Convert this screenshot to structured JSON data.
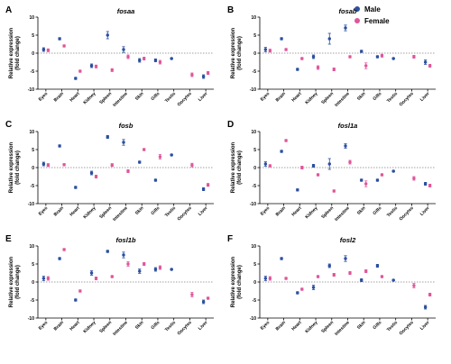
{
  "legend": {
    "male_label": "Male",
    "female_label": "Female",
    "male_color": "#2a4fa0",
    "female_color": "#e0559a"
  },
  "chart_data": [
    {
      "type": "scatter",
      "panel": "A",
      "title": "fosaa",
      "ylabel_line1": "Relative expression",
      "ylabel_line2": "(fold change)",
      "ylim": [
        -10,
        10
      ],
      "yticks": [
        -10,
        -5,
        0,
        5,
        10
      ],
      "categories": [
        "Eyes",
        "Brain",
        "Heart",
        "Kidney",
        "Spleen",
        "Intestine",
        "Skin",
        "Gills",
        "Testis",
        "Oocytes",
        "Liver"
      ],
      "series": [
        {
          "name": "Male",
          "values": [
            1,
            4,
            -7,
            -3.5,
            5,
            1,
            -2,
            -2,
            -1.5,
            null,
            -6.5
          ],
          "errors": [
            0.5,
            0.3,
            0.3,
            0.5,
            1,
            0.8,
            0.5,
            0.4,
            0.2,
            null,
            0.5
          ]
        },
        {
          "name": "Female",
          "values": [
            0.8,
            2,
            -5,
            -3.7,
            -4.7,
            -1,
            -1.5,
            -2.5,
            null,
            -6,
            -5.5
          ],
          "errors": [
            0.4,
            0.3,
            0.3,
            0.4,
            0.4,
            0.5,
            0.4,
            0.5,
            null,
            0.5,
            0.4
          ]
        }
      ]
    },
    {
      "type": "scatter",
      "panel": "B",
      "title": "fosab",
      "ylabel_line1": "Relative expression",
      "ylabel_line2": "(fold change)",
      "ylim": [
        -10,
        10
      ],
      "yticks": [
        -10,
        -5,
        0,
        5,
        10
      ],
      "categories": [
        "Eyes",
        "Brain",
        "Heart",
        "Kidney",
        "Spleen",
        "Intestine",
        "Skin",
        "Gills",
        "Testis",
        "Oocytes",
        "Liver"
      ],
      "series": [
        {
          "name": "Male",
          "values": [
            1,
            4,
            -4.5,
            -1,
            4,
            7,
            0.5,
            -1,
            -1.5,
            null,
            -2.5
          ],
          "errors": [
            0.6,
            0.3,
            0.3,
            0.5,
            1.5,
            0.8,
            0.3,
            0.3,
            0.2,
            null,
            0.6
          ]
        },
        {
          "name": "Female",
          "values": [
            0.7,
            1,
            -1.5,
            -4,
            -4.5,
            -1,
            -3.5,
            -0.7,
            null,
            -1,
            -3.5
          ],
          "errors": [
            0.4,
            0.3,
            0.3,
            0.5,
            0.4,
            0.3,
            0.8,
            0.4,
            null,
            0.4,
            0.4
          ]
        }
      ]
    },
    {
      "type": "scatter",
      "panel": "C",
      "title": "fosb",
      "ylabel_line1": "Relative expression",
      "ylabel_line2": "(fold change)",
      "ylim": [
        -10,
        10
      ],
      "yticks": [
        -10,
        -5,
        0,
        5,
        10
      ],
      "categories": [
        "Eyes",
        "Brain",
        "Heart",
        "Kidney",
        "Spleen",
        "Intestine",
        "Skin",
        "Gills",
        "Testis",
        "Oocytes",
        "Liver"
      ],
      "series": [
        {
          "name": "Male",
          "values": [
            1,
            6,
            -5.5,
            -1.5,
            8.5,
            7,
            1.5,
            -3.5,
            3.5,
            null,
            -6
          ],
          "errors": [
            0.5,
            0.3,
            0.3,
            0.5,
            0.4,
            0.8,
            0.3,
            0.3,
            0.2,
            null,
            0.4
          ]
        },
        {
          "name": "Female",
          "values": [
            0.7,
            0.8,
            null,
            -2.5,
            0.7,
            -1,
            5,
            3,
            null,
            0.7,
            -4.8
          ],
          "errors": [
            0.4,
            0.3,
            null,
            0.4,
            0.4,
            0.4,
            0.3,
            0.6,
            null,
            0.5,
            0.4
          ]
        }
      ]
    },
    {
      "type": "scatter",
      "panel": "D",
      "title": "fosl1a",
      "ylabel_line1": "Relative expression",
      "ylabel_line2": "(fold change)",
      "ylim": [
        -10,
        10
      ],
      "yticks": [
        -10,
        -5,
        0,
        5,
        10
      ],
      "categories": [
        "Eyes",
        "Brain",
        "Heart",
        "Kidney",
        "Spleen",
        "Intestine",
        "Skin",
        "Gills",
        "Testis",
        "Oocytes",
        "Liver"
      ],
      "series": [
        {
          "name": "Male",
          "values": [
            1,
            4.5,
            -6.2,
            0.5,
            1,
            6,
            -3.5,
            -3.5,
            -1,
            null,
            -4.5
          ],
          "errors": [
            0.6,
            0.3,
            0.3,
            0.4,
            1.5,
            0.6,
            0.3,
            0.3,
            0.2,
            null,
            0.4
          ]
        },
        {
          "name": "Female",
          "values": [
            0.5,
            7.5,
            0,
            -2,
            -6.5,
            1.5,
            -4.5,
            -2,
            null,
            -3,
            -5
          ],
          "errors": [
            0.3,
            0.3,
            0.4,
            0.3,
            0.3,
            0.5,
            0.8,
            0.3,
            null,
            0.5,
            0.4
          ]
        }
      ]
    },
    {
      "type": "scatter",
      "panel": "E",
      "title": "fosl1b",
      "ylabel_line1": "Relative expression",
      "ylabel_line2": "(fold change)",
      "ylim": [
        -10,
        10
      ],
      "yticks": [
        -10,
        -5,
        0,
        5,
        10
      ],
      "categories": [
        "Eyes",
        "Brain",
        "Heart",
        "Kidney",
        "Spleen",
        "Intestine",
        "Skin",
        "Gills",
        "Testis",
        "Oocytes",
        "Liver"
      ],
      "series": [
        {
          "name": "Male",
          "values": [
            1,
            6.5,
            -5,
            2.5,
            8.5,
            7.5,
            3,
            3.5,
            3.5,
            null,
            -5.5
          ],
          "errors": [
            0.6,
            0.3,
            0.3,
            0.6,
            0.3,
            0.8,
            0.6,
            0.5,
            0.2,
            null,
            0.5
          ]
        },
        {
          "name": "Female",
          "values": [
            1,
            9,
            -2.5,
            1,
            1.5,
            5,
            5,
            4,
            null,
            -3.5,
            -4.5
          ],
          "errors": [
            0.5,
            0.3,
            0.3,
            0.4,
            0.3,
            0.6,
            0.4,
            0.5,
            null,
            0.6,
            0.3
          ]
        }
      ]
    },
    {
      "type": "scatter",
      "panel": "F",
      "title": "fosl2",
      "ylabel_line1": "Relative expression",
      "ylabel_line2": "(fold change)",
      "ylim": [
        -10,
        10
      ],
      "yticks": [
        -10,
        -5,
        0,
        5,
        10
      ],
      "categories": [
        "Eyes",
        "Brain",
        "Heart",
        "Kidney",
        "Spleen",
        "Intestine",
        "Skin",
        "Gills",
        "Testis",
        "Oocytes",
        "Liver"
      ],
      "series": [
        {
          "name": "Male",
          "values": [
            1,
            6.5,
            -3,
            -1.5,
            4.5,
            6.5,
            0.5,
            4.5,
            0.5,
            null,
            -7
          ],
          "errors": [
            0.6,
            0.3,
            0.3,
            0.6,
            0.5,
            0.8,
            0.4,
            0.4,
            0.2,
            null,
            0.5
          ]
        },
        {
          "name": "Female",
          "values": [
            1,
            1,
            -2,
            1.5,
            2,
            2.5,
            3,
            1.5,
            null,
            -1,
            -3.5
          ],
          "errors": [
            0.5,
            0.3,
            0.3,
            0.3,
            0.4,
            0.4,
            0.4,
            0.3,
            null,
            0.6,
            0.4
          ]
        }
      ]
    }
  ]
}
